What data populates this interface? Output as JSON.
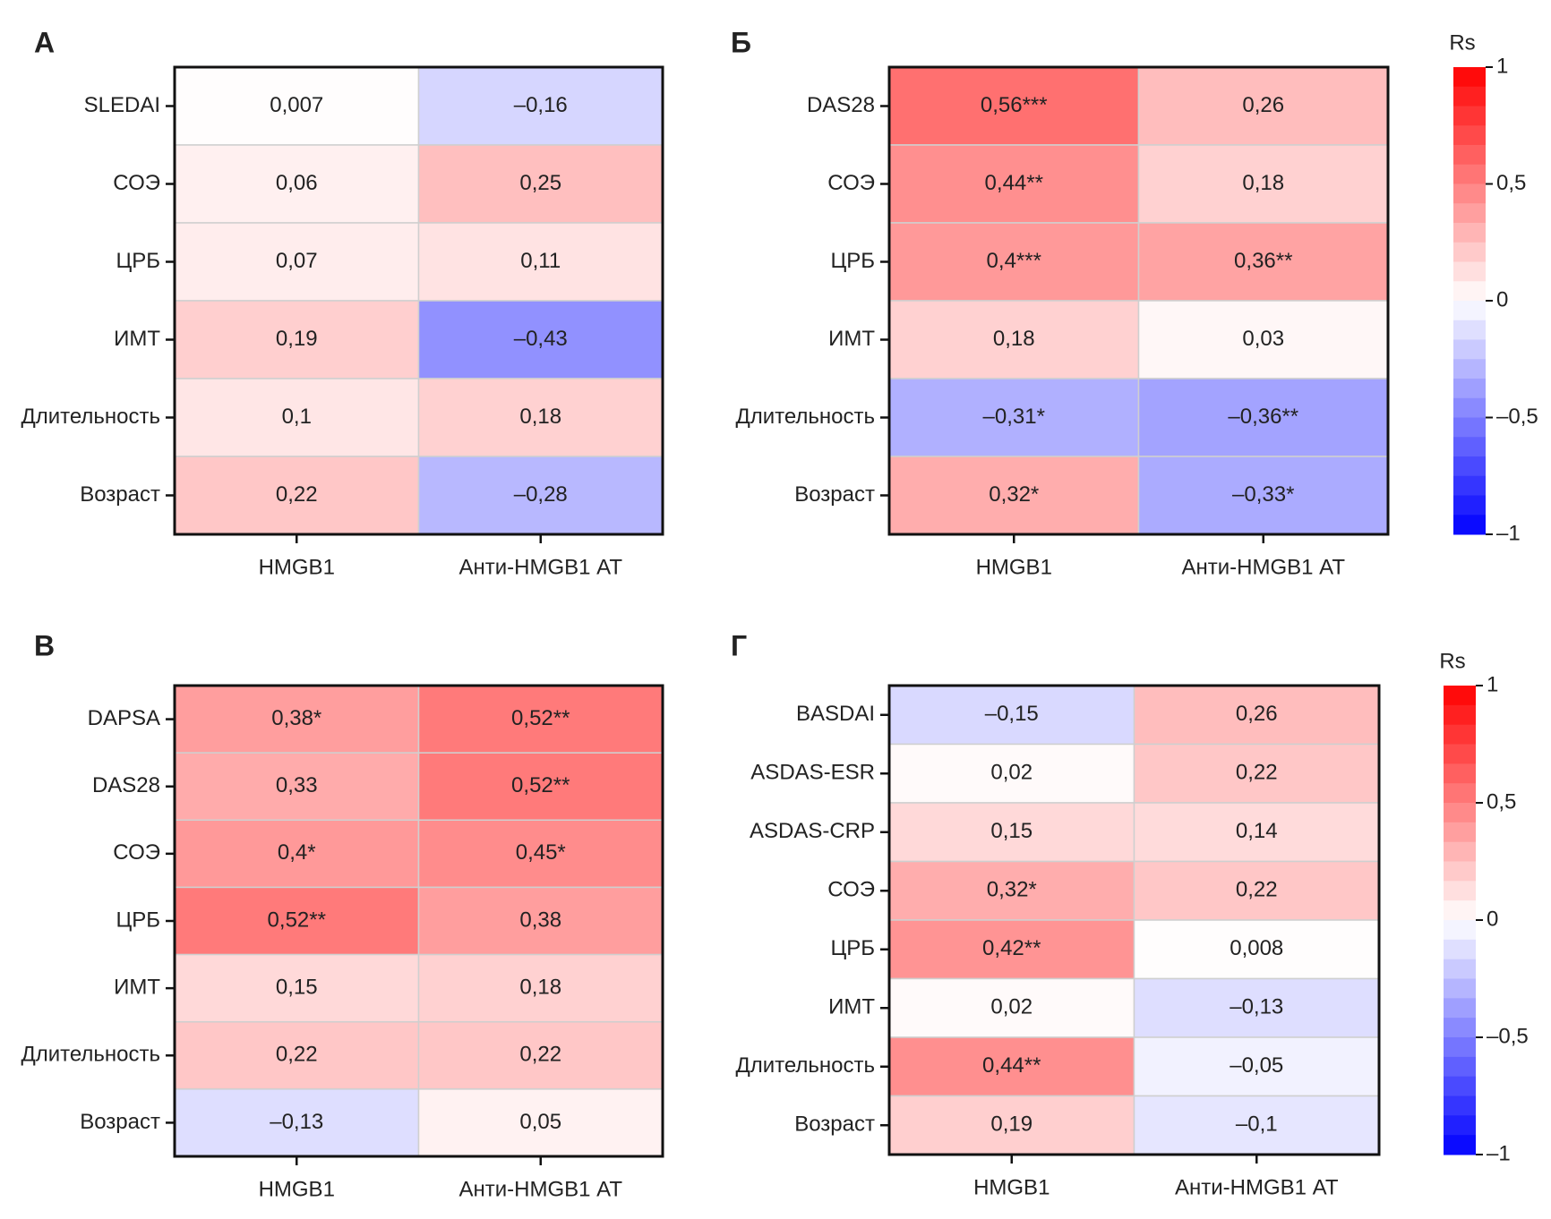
{
  "chart_data": [
    {
      "type": "heatmap",
      "title": "А",
      "rows": [
        "SLEDAI",
        "СОЭ",
        "ЦРБ",
        "ИМТ",
        "Длительность",
        "Возраст"
      ],
      "columns": [
        "HMGB1",
        "Анти-HMGB1 АТ"
      ],
      "values": [
        [
          0.007,
          -0.16
        ],
        [
          0.06,
          0.25
        ],
        [
          0.07,
          0.11
        ],
        [
          0.19,
          -0.43
        ],
        [
          0.1,
          0.18
        ],
        [
          0.22,
          -0.28
        ]
      ],
      "value_labels": [
        [
          "0,007",
          "–0,16"
        ],
        [
          "0,06",
          "0,25"
        ],
        [
          "0,07",
          "0,11"
        ],
        [
          "0,19",
          "–0,43"
        ],
        [
          "0,1",
          "0,18"
        ],
        [
          "0,22",
          "–0,28"
        ]
      ],
      "zlim": [
        -1,
        1
      ],
      "colormap": {
        "low": "#0000ff",
        "mid": "#ffffff",
        "high": "#ff0000"
      }
    },
    {
      "type": "heatmap",
      "title": "Б",
      "rows": [
        "DAS28",
        "СОЭ",
        "ЦРБ",
        "ИМТ",
        "Длительность",
        "Возраст"
      ],
      "columns": [
        "HMGB1",
        "Анти-HMGB1 АТ"
      ],
      "values": [
        [
          0.56,
          0.26
        ],
        [
          0.44,
          0.18
        ],
        [
          0.4,
          0.36
        ],
        [
          0.18,
          0.03
        ],
        [
          -0.31,
          -0.36
        ],
        [
          0.32,
          -0.33
        ]
      ],
      "value_labels": [
        [
          "0,56***",
          "0,26"
        ],
        [
          "0,44**",
          "0,18"
        ],
        [
          "0,4***",
          "0,36**"
        ],
        [
          "0,18",
          "0,03"
        ],
        [
          "–0,31*",
          "–0,36**"
        ],
        [
          "0,32*",
          "–0,33*"
        ]
      ],
      "zlim": [
        -1,
        1
      ],
      "colormap": {
        "low": "#0000ff",
        "mid": "#ffffff",
        "high": "#ff0000"
      },
      "colorbar": {
        "label": "Rs",
        "ticks": [
          1,
          {
            "value": 0.5,
            "label": "0,5"
          },
          0,
          {
            "value": -0.5,
            "label": "–0,5"
          },
          {
            "value": -1,
            "label": "–1"
          }
        ]
      }
    },
    {
      "type": "heatmap",
      "title": "В",
      "rows": [
        "DAPSA",
        "DAS28",
        "СОЭ",
        "ЦРБ",
        "ИМТ",
        "Длительность",
        "Возраст"
      ],
      "columns": [
        "HMGB1",
        "Анти-HMGB1 АТ"
      ],
      "values": [
        [
          0.38,
          0.52
        ],
        [
          0.33,
          0.52
        ],
        [
          0.4,
          0.45
        ],
        [
          0.52,
          0.38
        ],
        [
          0.15,
          0.18
        ],
        [
          0.22,
          0.22
        ],
        [
          -0.13,
          0.05
        ]
      ],
      "value_labels": [
        [
          "0,38*",
          "0,52**"
        ],
        [
          "0,33",
          "0,52**"
        ],
        [
          "0,4*",
          "0,45*"
        ],
        [
          "0,52**",
          "0,38"
        ],
        [
          "0,15",
          "0,18"
        ],
        [
          "0,22",
          "0,22"
        ],
        [
          "–0,13",
          "0,05"
        ]
      ],
      "zlim": [
        -1,
        1
      ],
      "colormap": {
        "low": "#0000ff",
        "mid": "#ffffff",
        "high": "#ff0000"
      }
    },
    {
      "type": "heatmap",
      "title": "Г",
      "rows": [
        "BASDAI",
        "ASDAS-ESR",
        "ASDAS-CRP",
        "СОЭ",
        "ЦРБ",
        "ИМТ",
        "Длительность",
        "Возраст"
      ],
      "columns": [
        "HMGB1",
        "Анти-HMGB1 АТ"
      ],
      "values": [
        [
          -0.15,
          0.26
        ],
        [
          0.02,
          0.22
        ],
        [
          0.15,
          0.14
        ],
        [
          0.32,
          0.22
        ],
        [
          0.42,
          0.008
        ],
        [
          0.02,
          -0.13
        ],
        [
          0.44,
          -0.05
        ],
        [
          0.19,
          -0.1
        ]
      ],
      "value_labels": [
        [
          "–0,15",
          "0,26"
        ],
        [
          "0,02",
          "0,22"
        ],
        [
          "0,15",
          "0,14"
        ],
        [
          "0,32*",
          "0,22"
        ],
        [
          "0,42**",
          "0,008"
        ],
        [
          "0,02",
          "–0,13"
        ],
        [
          "0,44**",
          "–0,05"
        ],
        [
          "0,19",
          "–0,1"
        ]
      ],
      "zlim": [
        -1,
        1
      ],
      "colormap": {
        "low": "#0000ff",
        "mid": "#ffffff",
        "high": "#ff0000"
      },
      "colorbar": {
        "label": "Rs",
        "ticks": [
          1,
          {
            "value": 0.5,
            "label": "0,5"
          },
          0,
          {
            "value": -0.5,
            "label": "–0,5"
          },
          {
            "value": -1,
            "label": "–1"
          }
        ]
      }
    }
  ]
}
